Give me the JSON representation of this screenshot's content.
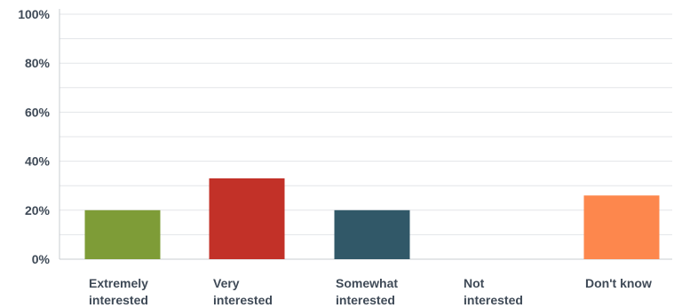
{
  "chart_data": {
    "type": "bar",
    "categories": [
      [
        "Extremely",
        "interested"
      ],
      [
        "Very",
        "interested"
      ],
      [
        "Somewhat",
        "interested"
      ],
      [
        "Not",
        "interested"
      ],
      [
        "Don't know"
      ]
    ],
    "values": [
      20,
      33,
      20,
      0,
      26
    ],
    "colors": [
      "#7e9c37",
      "#c23128",
      "#315868",
      "#8a8a8a",
      "#fd874d"
    ],
    "y_tick_labels": [
      "0%",
      "20%",
      "40%",
      "60%",
      "80%",
      "100%"
    ],
    "y_ticks": [
      0,
      20,
      40,
      60,
      80,
      100
    ],
    "ylim": [
      0,
      100
    ],
    "grid": true,
    "title": "",
    "xlabel": "",
    "ylabel": ""
  }
}
